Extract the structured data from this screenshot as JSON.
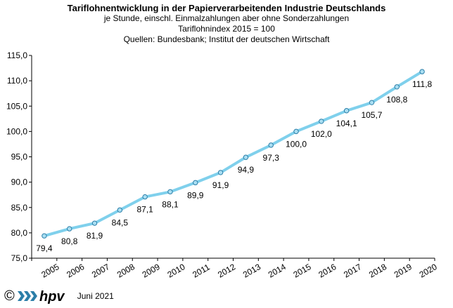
{
  "titles": {
    "title": "Tariflohnentwicklung in der Papierverarbeitenden Industrie Deutschlands",
    "subtitle1": "je Stunde,  einschl. Einmalzahlungen  aber ohne Sonderzahlungen",
    "subtitle2": "Tariflohnindex  2015  = 100",
    "sources": "Quellen: Bundesbank;  Institut der deutschen Wirtschaft"
  },
  "footer": {
    "copyright": "©",
    "logo_text": "hpv",
    "date": "Juni 2021"
  },
  "colors": {
    "line": "#7fd0ec",
    "marker_fill": "#a9def2",
    "marker_stroke": "#2b7ea8",
    "logo": "#2b7ea8"
  },
  "chart_data": {
    "type": "line",
    "x": [
      "2005",
      "2006",
      "2007",
      "2008",
      "2009",
      "2010",
      "2011",
      "2012",
      "2013",
      "2014",
      "2015",
      "2016",
      "2017",
      "2018",
      "2019",
      "2020"
    ],
    "values": [
      79.4,
      80.8,
      81.9,
      84.5,
      87.1,
      88.1,
      89.9,
      91.9,
      94.9,
      97.3,
      100.0,
      102.0,
      104.1,
      105.7,
      108.8,
      111.8
    ],
    "labels": [
      "79,4",
      "80,8",
      "81,9",
      "84,5",
      "87,1",
      "88,1",
      "89,9",
      "91,9",
      "94,9",
      "97,3",
      "100,0",
      "102,0",
      "104,1",
      "105,7",
      "108,8",
      "111,8"
    ],
    "yticks": [
      75,
      80,
      85,
      90,
      95,
      100,
      105,
      110,
      115
    ],
    "ytick_labels": [
      "75,0",
      "80,0",
      "85,0",
      "90,0",
      "95,0",
      "100,0",
      "105,0",
      "110,0",
      "115,0"
    ],
    "ylim": [
      75,
      115
    ],
    "grid": false,
    "legend": "none"
  }
}
